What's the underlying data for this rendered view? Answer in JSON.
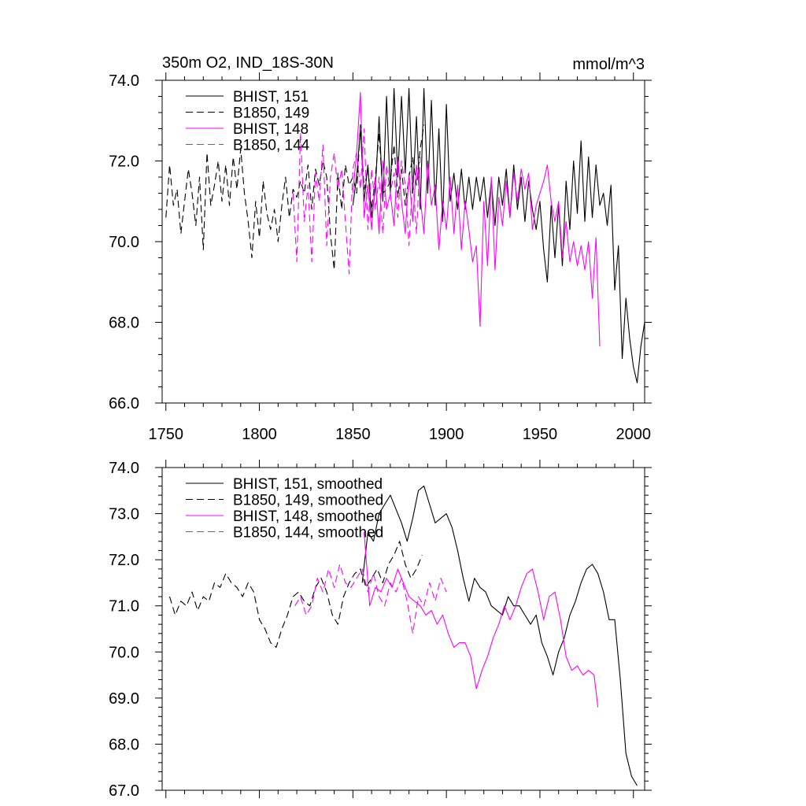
{
  "chart_data": [
    {
      "type": "line",
      "title": "350m O2, IND_18S-30N",
      "units": "mmol/m^3",
      "xlim": [
        1748,
        2006
      ],
      "ylim": [
        66.0,
        74.0
      ],
      "yticks": [
        66.0,
        68.0,
        70.0,
        72.0,
        74.0
      ],
      "ytick_labels": [
        "66.0",
        "68.0",
        "70.0",
        "72.0",
        "74.0"
      ],
      "xticks": [
        1750,
        1800,
        1850,
        1900,
        1950,
        2000
      ],
      "xtick_labels": [
        "1750",
        "1800",
        "1850",
        "1900",
        "1950",
        "2000"
      ],
      "legend_position": "top-left",
      "series": [
        {
          "name": "BHIST, 151",
          "color": "#000000",
          "dash": "solid",
          "x": [
            1850,
            1852,
            1854,
            1856,
            1858,
            1860,
            1862,
            1864,
            1866,
            1868,
            1870,
            1872,
            1874,
            1876,
            1878,
            1880,
            1882,
            1884,
            1886,
            1888,
            1890,
            1892,
            1894,
            1896,
            1898,
            1900,
            1902,
            1904,
            1906,
            1908,
            1910,
            1912,
            1914,
            1916,
            1918,
            1920,
            1922,
            1924,
            1926,
            1928,
            1930,
            1932,
            1934,
            1936,
            1938,
            1940,
            1942,
            1944,
            1946,
            1948,
            1950,
            1952,
            1954,
            1956,
            1958,
            1960,
            1962,
            1964,
            1966,
            1968,
            1970,
            1972,
            1974,
            1976,
            1978,
            1980,
            1982,
            1984,
            1986,
            1988,
            1990,
            1992,
            1994,
            1996,
            1998,
            2000,
            2002,
            2004,
            2006
          ],
          "y": [
            70.9,
            71.6,
            72.8,
            71.0,
            71.9,
            70.6,
            71.3,
            73.1,
            71.0,
            73.6,
            71.2,
            73.8,
            71.6,
            73.6,
            71.7,
            73.8,
            71.2,
            73.1,
            70.8,
            73.8,
            71.2,
            73.5,
            70.9,
            72.8,
            70.5,
            73.4,
            71.0,
            71.7,
            70.8,
            71.8,
            70.8,
            71.6,
            70.8,
            71.6,
            71.0,
            71.6,
            70.6,
            71.5,
            70.4,
            71.6,
            70.9,
            71.8,
            70.6,
            71.9,
            70.8,
            71.6,
            70.5,
            71.5,
            70.8,
            70.3,
            71.0,
            69.8,
            69.0,
            70.9,
            69.6,
            70.9,
            69.4,
            71.5,
            70.3,
            72.0,
            70.7,
            72.5,
            70.5,
            72.1,
            70.6,
            71.9,
            70.9,
            71.2,
            70.4,
            71.4,
            68.8,
            69.9,
            67.1,
            68.6,
            67.6,
            66.9,
            66.5,
            67.4,
            68.0
          ]
        },
        {
          "name": "B1850, 149",
          "color": "#000000",
          "dash": "dashed",
          "x": [
            1750,
            1752,
            1754,
            1756,
            1758,
            1760,
            1762,
            1764,
            1766,
            1768,
            1770,
            1772,
            1774,
            1776,
            1778,
            1780,
            1782,
            1784,
            1786,
            1788,
            1790,
            1792,
            1794,
            1796,
            1798,
            1800,
            1802,
            1804,
            1806,
            1808,
            1810,
            1812,
            1814,
            1816,
            1818,
            1820,
            1822,
            1824,
            1826,
            1828,
            1830,
            1832,
            1834,
            1836,
            1838,
            1840,
            1842,
            1844,
            1846,
            1848,
            1850,
            1852,
            1854,
            1856,
            1858,
            1860,
            1862,
            1864,
            1866,
            1868,
            1870,
            1872,
            1874,
            1876,
            1878,
            1880,
            1882,
            1884,
            1886,
            1888
          ],
          "y": [
            70.6,
            71.9,
            70.9,
            71.3,
            70.2,
            71.0,
            71.8,
            71.2,
            70.4,
            71.6,
            69.8,
            72.2,
            70.9,
            71.4,
            72.0,
            71.0,
            71.9,
            70.9,
            72.1,
            71.3,
            72.3,
            71.2,
            70.5,
            69.6,
            71.0,
            70.1,
            71.5,
            70.7,
            70.3,
            70.8,
            70.0,
            70.9,
            71.6,
            70.6,
            71.3,
            71.1,
            71.5,
            71.2,
            71.9,
            70.8,
            71.8,
            71.4,
            72.0,
            71.6,
            70.2,
            69.3,
            71.7,
            70.8,
            71.9,
            71.4,
            71.6,
            71.2,
            72.9,
            71.3,
            71.8,
            70.8,
            71.6,
            72.7,
            71.2,
            71.3,
            71.5,
            72.4,
            71.1,
            71.8,
            70.9,
            71.6,
            72.1,
            71.4,
            72.3,
            72.9
          ]
        },
        {
          "name": "BHIST, 148",
          "color": "#ff00ff",
          "dash": "solid",
          "x": [
            1850,
            1852,
            1854,
            1856,
            1858,
            1860,
            1862,
            1864,
            1866,
            1868,
            1870,
            1872,
            1874,
            1876,
            1878,
            1880,
            1882,
            1884,
            1886,
            1888,
            1890,
            1892,
            1894,
            1896,
            1898,
            1900,
            1902,
            1904,
            1906,
            1908,
            1910,
            1912,
            1914,
            1916,
            1918,
            1920,
            1922,
            1924,
            1926,
            1928,
            1930,
            1932,
            1934,
            1936,
            1938,
            1940,
            1942,
            1944,
            1946,
            1948,
            1950,
            1952,
            1954,
            1956,
            1958,
            1960,
            1962,
            1964,
            1966,
            1968,
            1970,
            1972,
            1974,
            1976,
            1978,
            1980,
            1982
          ],
          "y": [
            71.2,
            72.2,
            73.7,
            70.6,
            71.4,
            70.3,
            71.6,
            70.2,
            72.0,
            70.8,
            71.2,
            70.4,
            72.1,
            71.0,
            70.2,
            71.7,
            70.5,
            71.9,
            71.1,
            70.2,
            72.0,
            70.9,
            71.4,
            69.8,
            71.0,
            70.3,
            71.6,
            70.2,
            71.4,
            69.8,
            71.0,
            70.3,
            69.5,
            69.9,
            67.9,
            71.0,
            69.4,
            71.6,
            69.3,
            71.1,
            70.4,
            71.5,
            70.6,
            71.7,
            71.0,
            71.8,
            71.3,
            71.7,
            70.3,
            70.9,
            71.2,
            71.5,
            71.9,
            71.0,
            70.5,
            71.0,
            69.6,
            70.5,
            69.5,
            70.0,
            69.4,
            69.9,
            69.3,
            70.0,
            68.6,
            70.1,
            67.4
          ]
        },
        {
          "name": "B1850, 144",
          "color": "#ff00ff",
          "dash": "dashed",
          "x": [
            1818,
            1820,
            1822,
            1824,
            1826,
            1828,
            1830,
            1832,
            1834,
            1836,
            1838,
            1840,
            1842,
            1844,
            1846,
            1848,
            1850,
            1852,
            1854,
            1856,
            1858,
            1860,
            1862,
            1864,
            1866,
            1868,
            1870,
            1872,
            1874,
            1876,
            1878,
            1880,
            1882,
            1884,
            1886
          ],
          "y": [
            71.2,
            69.5,
            72.7,
            70.5,
            71.4,
            69.5,
            71.7,
            71.0,
            72.4,
            69.9,
            71.6,
            72.2,
            71.3,
            71.8,
            70.5,
            69.2,
            71.8,
            72.2,
            71.3,
            72.8,
            70.3,
            71.8,
            70.8,
            71.6,
            70.2,
            71.9,
            71.2,
            71.7,
            70.6,
            72.0,
            71.4,
            69.9,
            71.6,
            70.2,
            72.1
          ]
        }
      ]
    },
    {
      "type": "line",
      "title": "",
      "units": "",
      "xlim": [
        1748,
        2006
      ],
      "ylim": [
        67.0,
        74.0
      ],
      "yticks": [
        67.0,
        68.0,
        69.0,
        70.0,
        71.0,
        72.0,
        73.0,
        74.0
      ],
      "ytick_labels": [
        "67.0",
        "68.0",
        "69.0",
        "70.0",
        "71.0",
        "72.0",
        "73.0",
        "74.0"
      ],
      "legend_position": "top-left",
      "series": [
        {
          "name": "BHIST, 151, smoothed",
          "color": "#000000",
          "dash": "solid",
          "x": [
            1855,
            1858,
            1861,
            1864,
            1867,
            1870,
            1873,
            1876,
            1879,
            1882,
            1885,
            1888,
            1891,
            1894,
            1897,
            1900,
            1903,
            1906,
            1909,
            1912,
            1915,
            1918,
            1921,
            1924,
            1927,
            1930,
            1933,
            1936,
            1939,
            1942,
            1945,
            1948,
            1951,
            1954,
            1957,
            1960,
            1963,
            1966,
            1969,
            1972,
            1975,
            1978,
            1981,
            1984,
            1987,
            1990,
            1993,
            1996,
            1999,
            2002
          ],
          "y": [
            71.5,
            72.6,
            72.4,
            73.0,
            73.2,
            73.4,
            73.1,
            72.8,
            72.4,
            72.9,
            73.5,
            73.6,
            73.2,
            72.8,
            72.9,
            73.0,
            72.7,
            72.2,
            71.6,
            71.1,
            71.6,
            71.4,
            71.3,
            71.0,
            70.9,
            70.8,
            71.2,
            71.0,
            71.0,
            70.8,
            70.6,
            70.8,
            70.2,
            69.9,
            69.5,
            70.0,
            70.3,
            70.8,
            71.1,
            71.5,
            71.8,
            71.9,
            71.7,
            71.3,
            70.7,
            70.7,
            69.4,
            67.8,
            67.3,
            67.1
          ]
        },
        {
          "name": "B1850, 149, smoothed",
          "color": "#000000",
          "dash": "dashed",
          "x": [
            1752,
            1755,
            1758,
            1761,
            1764,
            1767,
            1770,
            1773,
            1776,
            1779,
            1782,
            1785,
            1788,
            1791,
            1794,
            1797,
            1800,
            1803,
            1806,
            1809,
            1812,
            1815,
            1818,
            1821,
            1824,
            1827,
            1830,
            1833,
            1836,
            1839,
            1842,
            1845,
            1848,
            1851,
            1854,
            1857,
            1860,
            1863,
            1866,
            1869,
            1872,
            1875,
            1878,
            1881,
            1884,
            1887
          ],
          "y": [
            71.2,
            70.8,
            71.1,
            71.0,
            71.3,
            70.9,
            71.2,
            71.1,
            71.5,
            71.4,
            71.7,
            71.5,
            71.4,
            71.2,
            71.5,
            71.3,
            70.7,
            70.5,
            70.2,
            70.1,
            70.5,
            70.8,
            71.2,
            71.3,
            71.1,
            71.0,
            71.4,
            71.6,
            71.3,
            70.8,
            70.6,
            71.2,
            71.5,
            71.7,
            71.8,
            71.4,
            71.6,
            71.8,
            71.5,
            71.9,
            72.1,
            72.4,
            71.9,
            71.6,
            71.8,
            72.1
          ]
        },
        {
          "name": "BHIST, 148, smoothed",
          "color": "#ff00ff",
          "dash": "solid",
          "x": [
            1856,
            1859,
            1862,
            1865,
            1868,
            1871,
            1874,
            1877,
            1880,
            1883,
            1886,
            1889,
            1892,
            1895,
            1898,
            1901,
            1904,
            1907,
            1910,
            1913,
            1916,
            1919,
            1922,
            1925,
            1928,
            1931,
            1934,
            1937,
            1940,
            1943,
            1946,
            1949,
            1952,
            1955,
            1958,
            1961,
            1964,
            1967,
            1970,
            1973,
            1976,
            1979,
            1981
          ],
          "y": [
            72.6,
            71.0,
            71.4,
            71.3,
            71.6,
            71.4,
            71.8,
            71.5,
            71.2,
            71.1,
            71.0,
            70.8,
            70.9,
            70.6,
            70.8,
            70.4,
            70.1,
            70.2,
            70.2,
            69.9,
            69.2,
            69.6,
            69.9,
            70.3,
            70.6,
            71.0,
            70.7,
            71.0,
            71.4,
            71.7,
            71.8,
            71.3,
            70.7,
            71.2,
            71.3,
            70.7,
            69.9,
            69.6,
            69.7,
            69.5,
            69.6,
            69.5,
            68.8
          ]
        },
        {
          "name": "B1850, 144, smoothed",
          "color": "#ff00ff",
          "dash": "dashed",
          "x": [
            1819,
            1822,
            1825,
            1828,
            1831,
            1834,
            1837,
            1840,
            1843,
            1846,
            1849,
            1852,
            1855,
            1858,
            1861,
            1864,
            1867,
            1870,
            1873,
            1876,
            1879,
            1882,
            1885,
            1888,
            1891,
            1894,
            1897,
            1900
          ],
          "y": [
            71.0,
            71.2,
            70.8,
            71.0,
            71.6,
            71.3,
            71.8,
            71.4,
            71.9,
            71.5,
            71.4,
            71.6,
            71.8,
            71.3,
            71.7,
            71.2,
            71.0,
            71.5,
            71.3,
            71.6,
            71.1,
            70.4,
            71.2,
            71.0,
            71.5,
            71.1,
            71.6,
            71.3
          ]
        }
      ]
    }
  ]
}
